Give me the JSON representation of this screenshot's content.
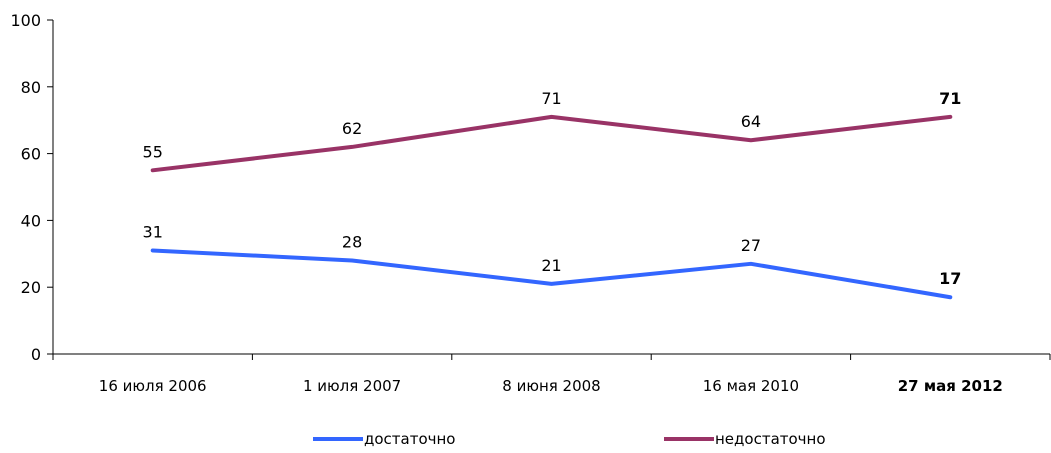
{
  "chart_data": {
    "type": "line",
    "categories": [
      "16 июля 2006",
      "1 июля 2007",
      "8 июня 2008",
      "16 мая 2010",
      "27 мая 2012"
    ],
    "highlight_category_index": 4,
    "series": [
      {
        "name": "достаточно",
        "values": [
          31,
          28,
          21,
          27,
          17
        ],
        "labels": [
          "31",
          "28",
          "21",
          "27",
          "17"
        ],
        "color": "#3366ff"
      },
      {
        "name": "недостаточно",
        "values": [
          55,
          62,
          71,
          64,
          71
        ],
        "labels": [
          "55",
          "62",
          "71",
          "64",
          "71"
        ],
        "color": "#993366"
      }
    ],
    "ylim": [
      0,
      100
    ],
    "yticks": [
      0,
      20,
      40,
      60,
      80,
      100
    ],
    "ytick_labels": [
      "0",
      "20",
      "40",
      "60",
      "80",
      "100"
    ],
    "grid": false,
    "legend_position": "bottom"
  }
}
